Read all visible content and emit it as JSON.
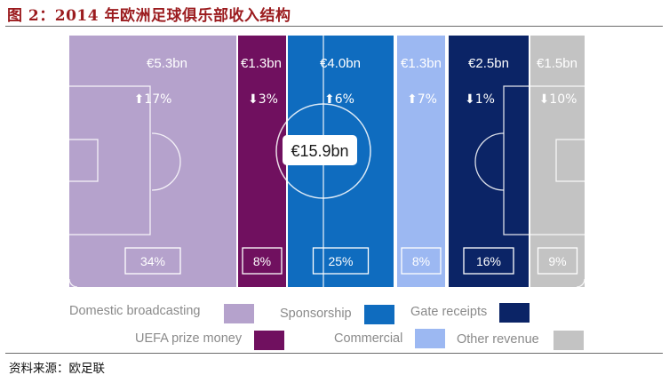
{
  "figure": {
    "title": "图 2：2014 年欧洲足球俱乐部收入结构",
    "source": "资料来源：欧足联"
  },
  "chart_data": {
    "type": "bar",
    "title": "2014 年欧洲足球俱乐部收入结构",
    "total_label": "€15.9bn",
    "total_value_bn": 15.9,
    "unit": "€bn",
    "categories": [
      "Domestic broadcasting",
      "UEFA prize money",
      "Sponsorship",
      "Commercial",
      "Gate receipts",
      "Other revenue"
    ],
    "values_bn": [
      5.3,
      1.3,
      4.0,
      1.3,
      2.5,
      1.5
    ],
    "value_labels": [
      "€5.3bn",
      "€1.3bn",
      "€4.0bn",
      "€1.3bn",
      "€2.5bn",
      "€1.5bn"
    ],
    "change_direction": [
      "up",
      "down",
      "up",
      "up",
      "down",
      "down"
    ],
    "change_labels": [
      "17%",
      "3%",
      "6%",
      "7%",
      "1%",
      "10%"
    ],
    "share_percent": [
      34,
      8,
      25,
      8,
      16,
      9
    ],
    "share_labels": [
      "34%",
      "8%",
      "25%",
      "8%",
      "16%",
      "9%"
    ],
    "colors": [
      "#b5a2cc",
      "#70105f",
      "#0f6cbf",
      "#9cb8f2",
      "#0b2466",
      "#c3c3c3"
    ],
    "legend": [
      {
        "label": "Domestic broadcasting",
        "color": "#b5a2cc"
      },
      {
        "label": "Sponsorship",
        "color": "#0f6cbf"
      },
      {
        "label": "Gate receipts",
        "color": "#0b2466"
      },
      {
        "label": "UEFA prize money",
        "color": "#70105f"
      },
      {
        "label": "Commercial",
        "color": "#9cb8f2"
      },
      {
        "label": "Other revenue",
        "color": "#c3c3c3"
      }
    ]
  }
}
